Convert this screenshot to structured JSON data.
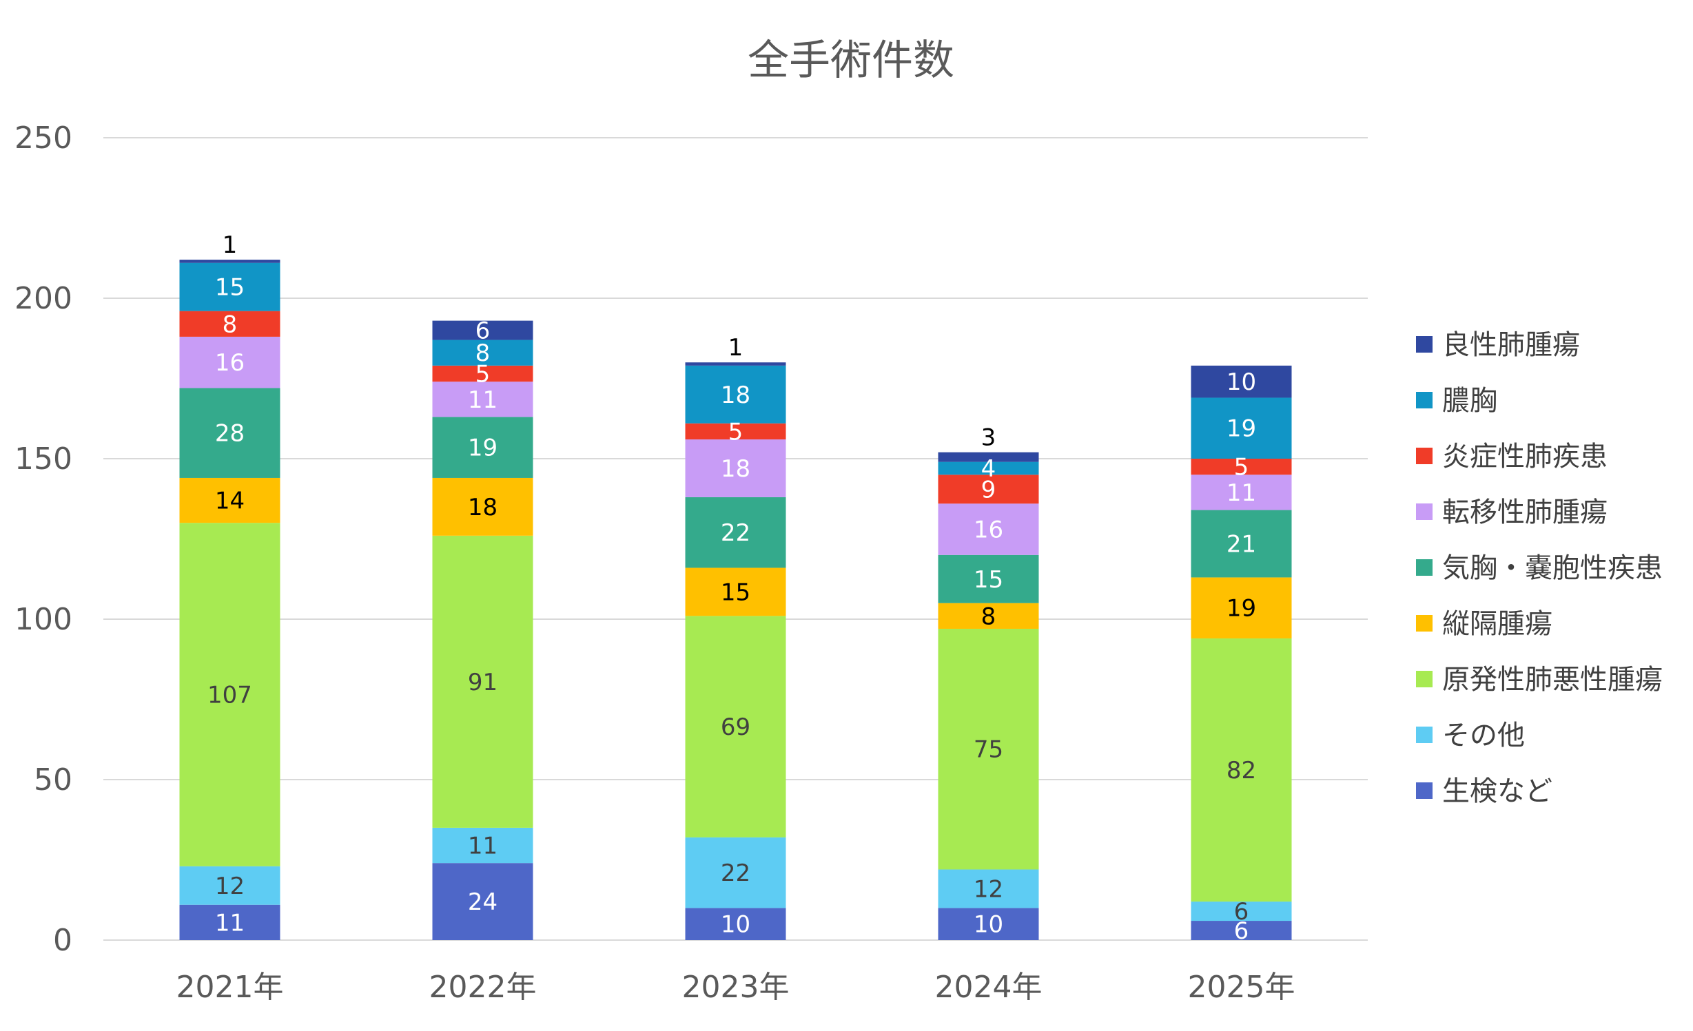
{
  "chart_data": {
    "type": "bar",
    "stacked": true,
    "title": "全手術件数",
    "xlabel": "",
    "ylabel": "",
    "ylim": [
      0,
      250
    ],
    "yticks": [
      0,
      50,
      100,
      150,
      200,
      250
    ],
    "grid": true,
    "legend_position": "right",
    "categories": [
      "2021年",
      "2022年",
      "2023年",
      "2024年",
      "2025年"
    ],
    "series": [
      {
        "name": "生検など",
        "color": "#4E67C8",
        "label_color": "#ffffff",
        "values": [
          11,
          24,
          10,
          10,
          6
        ]
      },
      {
        "name": "その他",
        "color": "#5ECCF3",
        "label_color": "#404040",
        "values": [
          12,
          11,
          22,
          12,
          6
        ]
      },
      {
        "name": "原発性肺悪性腫瘍",
        "color": "#A7EA52",
        "label_color": "#404040",
        "values": [
          107,
          91,
          69,
          75,
          82
        ]
      },
      {
        "name": "縦隔腫瘍",
        "color": "#FFC000",
        "label_color": "#000000",
        "values": [
          14,
          18,
          15,
          8,
          19
        ]
      },
      {
        "name": "気胸・嚢胞性疾患",
        "color": "#34AA8C",
        "label_color": "#ffffff",
        "values": [
          28,
          19,
          22,
          15,
          21
        ]
      },
      {
        "name": "転移性肺腫瘍",
        "color": "#C89CF6",
        "label_color": "#ffffff",
        "values": [
          16,
          11,
          18,
          16,
          11
        ]
      },
      {
        "name": "炎症性肺疾患",
        "color": "#F03C28",
        "label_color": "#ffffff",
        "values": [
          8,
          5,
          5,
          9,
          5
        ]
      },
      {
        "name": "膿胸",
        "color": "#1195C6",
        "label_color": "#ffffff",
        "values": [
          15,
          8,
          18,
          4,
          19
        ]
      },
      {
        "name": "良性肺腫瘍",
        "color": "#2F48A0",
        "label_color": "#ffffff",
        "values": [
          1,
          6,
          1,
          3,
          10
        ]
      }
    ]
  }
}
